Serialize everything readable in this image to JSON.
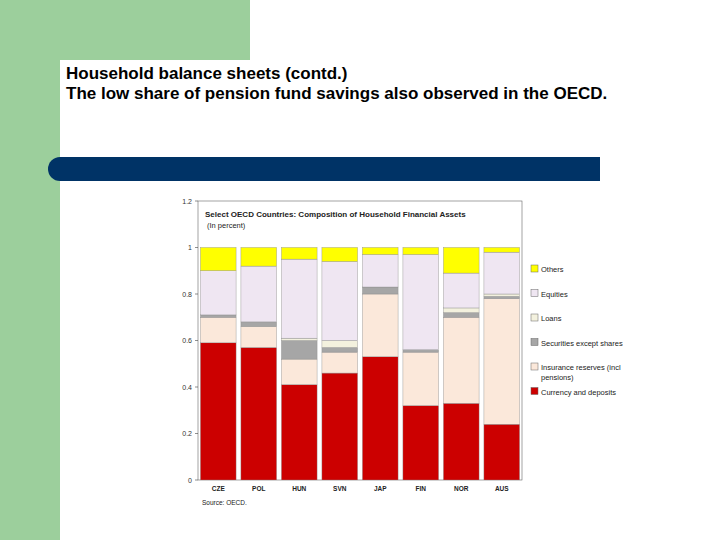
{
  "header": {
    "title": "Household balance sheets (contd.)",
    "subtitle": "The low share of pension fund savings also observed in the OECD."
  },
  "chart_data": {
    "type": "bar",
    "stacked": true,
    "legend": "right",
    "grid": false,
    "title": "Select OECD Countries: Composition of Household Financial Assets",
    "subtitle": "(In percent)",
    "source": "Source: OECD.",
    "categories": [
      "CZE",
      "POL",
      "HUN",
      "SVN",
      "JAP",
      "FIN",
      "NOR",
      "AUS"
    ],
    "ylim": [
      0,
      1.2
    ],
    "yticks": [
      0,
      0.2,
      0.4,
      0.6,
      0.8,
      1,
      1.2
    ],
    "series": [
      {
        "name": "Currency and deposits",
        "color": "#cc0000",
        "values": [
          0.59,
          0.57,
          0.41,
          0.46,
          0.53,
          0.32,
          0.33,
          0.24
        ]
      },
      {
        "name": "Insurance reserves (incl pensions)",
        "color": "#fbe8da",
        "values": [
          0.11,
          0.09,
          0.11,
          0.09,
          0.27,
          0.23,
          0.37,
          0.54
        ]
      },
      {
        "name": "Securities except shares",
        "color": "#a6a6a6",
        "values": [
          0.01,
          0.02,
          0.08,
          0.02,
          0.03,
          0.01,
          0.02,
          0.01
        ]
      },
      {
        "name": "Loans",
        "color": "#f3f1de",
        "values": [
          0,
          0,
          0.01,
          0.03,
          0,
          0,
          0.02,
          0.01
        ]
      },
      {
        "name": "Equities",
        "color": "#efe6f2",
        "values": [
          0.19,
          0.24,
          0.34,
          0.34,
          0.14,
          0.41,
          0.15,
          0.18
        ]
      },
      {
        "name": "Others",
        "color": "#ffff00",
        "values": [
          0.1,
          0.08,
          0.05,
          0.06,
          0.03,
          0.03,
          0.11,
          0.02
        ]
      }
    ]
  }
}
